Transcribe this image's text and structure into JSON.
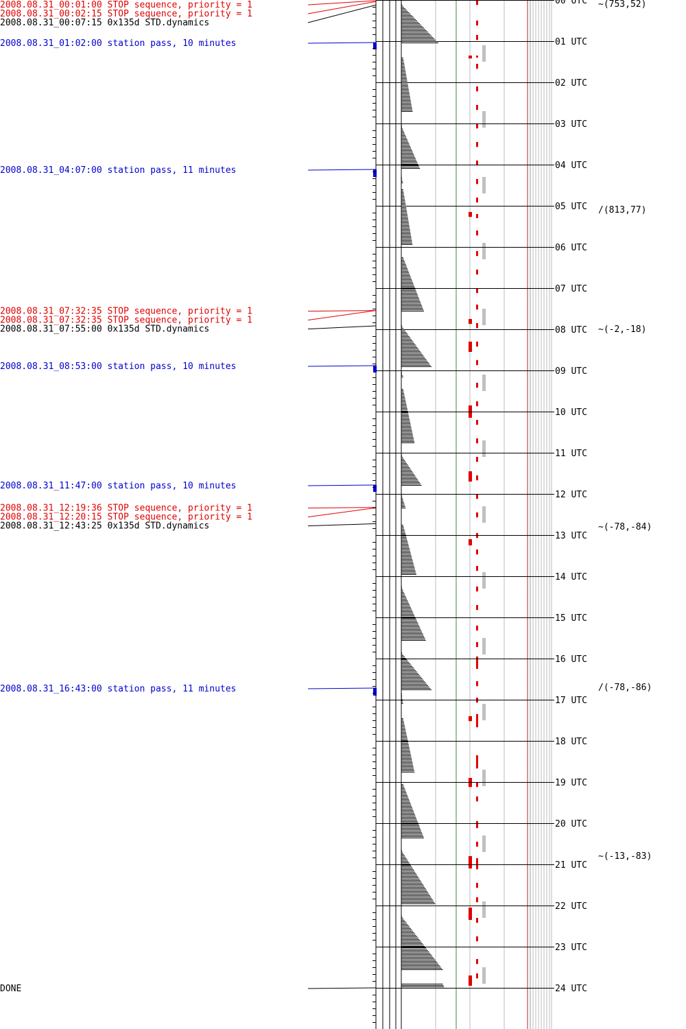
{
  "chart_data": {
    "type": "timeline",
    "title": "",
    "axis": {
      "unit_label": "UTC",
      "hours": [
        "00",
        "01",
        "02",
        "03",
        "04",
        "05",
        "06",
        "07",
        "08",
        "09",
        "10",
        "11",
        "12",
        "13",
        "14",
        "15",
        "16",
        "17",
        "18",
        "19",
        "20",
        "21",
        "22",
        "23",
        "24"
      ],
      "range_hours": [
        0,
        24
      ]
    },
    "events": [
      {
        "time_h": 0.0167,
        "label": "2008.08.31_00:01:00 STOP sequence, priority = 1",
        "kind": "stop"
      },
      {
        "time_h": 0.0375,
        "label": "2008.08.31_00:02:15 STOP sequence, priority = 1",
        "kind": "stop"
      },
      {
        "time_h": 0.1208,
        "label": "2008.08.31_00:07:15 0x135d STD.dynamics",
        "kind": "cmd"
      },
      {
        "time_h": 1.0333,
        "label": "2008.08.31_01:02:00 station pass, 10 minutes",
        "kind": "pass",
        "duration_min": 10
      },
      {
        "time_h": 4.1167,
        "label": "2008.08.31_04:07:00 station pass, 11 minutes",
        "kind": "pass",
        "duration_min": 11
      },
      {
        "time_h": 7.5431,
        "label": "2008.08.31_07:32:35 STOP sequence, priority = 1",
        "kind": "stop"
      },
      {
        "time_h": 7.5431,
        "label": "2008.08.31_07:32:35 STOP sequence, priority = 1",
        "kind": "stop"
      },
      {
        "time_h": 7.9167,
        "label": "2008.08.31_07:55:00 0x135d STD.dynamics",
        "kind": "cmd"
      },
      {
        "time_h": 8.8833,
        "label": "2008.08.31_08:53:00 station pass, 10 minutes",
        "kind": "pass",
        "duration_min": 10
      },
      {
        "time_h": 11.7833,
        "label": "2008.08.31_11:47:00 station pass, 10 minutes",
        "kind": "pass",
        "duration_min": 10
      },
      {
        "time_h": 12.3267,
        "label": "2008.08.31_12:19:36 STOP sequence, priority = 1",
        "kind": "stop"
      },
      {
        "time_h": 12.3375,
        "label": "2008.08.31_12:20:15 STOP sequence, priority = 1",
        "kind": "stop"
      },
      {
        "time_h": 12.7236,
        "label": "2008.08.31_12:43:25 0x135d STD.dynamics",
        "kind": "cmd"
      },
      {
        "time_h": 16.7167,
        "label": "2008.08.31_16:43:00 station pass, 11 minutes",
        "kind": "pass",
        "duration_min": 11
      },
      {
        "time_h": 24.0,
        "label": "DONE",
        "kind": "done"
      }
    ],
    "positions": [
      {
        "time_h": 0.0,
        "label": "(753,52)",
        "symbol": "~"
      },
      {
        "time_h": 5.0,
        "label": "(813,77)",
        "symbol": "/"
      },
      {
        "time_h": 7.9,
        "label": "(-2,-18)",
        "symbol": "~"
      },
      {
        "time_h": 12.7,
        "label": "(-78,-84)",
        "symbol": "~"
      },
      {
        "time_h": 16.6,
        "label": "(-78,-86)",
        "symbol": "/"
      },
      {
        "time_h": 20.7,
        "label": "(-13,-83)",
        "symbol": "~"
      }
    ],
    "ramps": [
      {
        "start_h": 0.1,
        "end_h": 1.05,
        "min": 0.0,
        "max": 1.0
      },
      {
        "start_h": 1.4,
        "end_h": 2.7,
        "min": 0.05,
        "max": 0.3
      },
      {
        "start_h": 3.05,
        "end_h": 4.1,
        "min": 0.0,
        "max": 0.5
      },
      {
        "start_h": 4.3,
        "end_h": 4.45,
        "min": 0.0,
        "max": 0.05
      },
      {
        "start_h": 4.6,
        "end_h": 5.95,
        "min": 0.05,
        "max": 0.3
      },
      {
        "start_h": 6.25,
        "end_h": 7.55,
        "min": 0.05,
        "max": 0.6
      },
      {
        "start_h": 7.9,
        "end_h": 8.9,
        "min": 0.0,
        "max": 0.8
      },
      {
        "start_h": 9.05,
        "end_h": 9.15,
        "min": 0.0,
        "max": 0.05
      },
      {
        "start_h": 9.45,
        "end_h": 10.75,
        "min": 0.05,
        "max": 0.35
      },
      {
        "start_h": 11.05,
        "end_h": 11.8,
        "min": 0.0,
        "max": 0.55
      },
      {
        "start_h": 12.0,
        "end_h": 12.35,
        "min": 0.0,
        "max": 0.12
      },
      {
        "start_h": 12.75,
        "end_h": 13.95,
        "min": 0.05,
        "max": 0.4
      },
      {
        "start_h": 14.25,
        "end_h": 15.55,
        "min": 0.0,
        "max": 0.65
      },
      {
        "start_h": 15.85,
        "end_h": 16.75,
        "min": 0.0,
        "max": 0.8
      },
      {
        "start_h": 16.85,
        "end_h": 17.1,
        "min": 0.0,
        "max": 0.05
      },
      {
        "start_h": 17.45,
        "end_h": 18.75,
        "min": 0.05,
        "max": 0.35
      },
      {
        "start_h": 19.05,
        "end_h": 20.35,
        "min": 0.05,
        "max": 0.6
      },
      {
        "start_h": 20.65,
        "end_h": 21.95,
        "min": 0.0,
        "max": 0.9
      },
      {
        "start_h": 22.25,
        "end_h": 23.55,
        "min": 0.0,
        "max": 1.1
      },
      {
        "start_h": 23.9,
        "end_h": 24.0,
        "min": 1.1,
        "max": 1.15
      }
    ],
    "red_marks": [
      [
        0.0,
        0.12
      ],
      [
        0.5,
        0.62
      ],
      [
        0.85,
        0.97
      ],
      [
        1.35,
        1.4
      ],
      [
        1.55,
        1.67
      ],
      [
        2.1,
        2.22
      ],
      [
        2.55,
        2.67
      ],
      [
        3.0,
        3.12
      ],
      [
        3.45,
        3.57
      ],
      [
        3.9,
        4.02
      ],
      [
        4.35,
        4.47
      ],
      [
        4.8,
        4.92
      ],
      [
        5.2,
        5.3
      ],
      [
        5.6,
        5.72
      ],
      [
        6.1,
        6.22
      ],
      [
        6.55,
        6.67
      ],
      [
        7.0,
        7.12
      ],
      [
        7.4,
        7.52
      ],
      [
        7.85,
        7.97
      ],
      [
        8.3,
        8.42
      ],
      [
        8.75,
        8.87
      ],
      [
        9.3,
        9.42
      ],
      [
        9.75,
        9.87
      ],
      [
        10.2,
        10.32
      ],
      [
        10.65,
        10.77
      ],
      [
        11.1,
        11.22
      ],
      [
        11.55,
        11.67
      ],
      [
        12.0,
        12.12
      ],
      [
        12.45,
        12.57
      ],
      [
        12.95,
        13.07
      ],
      [
        13.35,
        13.47
      ],
      [
        13.75,
        13.87
      ],
      [
        14.25,
        14.37
      ],
      [
        14.7,
        14.82
      ],
      [
        15.2,
        15.32
      ],
      [
        15.6,
        15.72
      ],
      [
        15.95,
        16.25
      ],
      [
        16.55,
        16.67
      ],
      [
        16.95,
        17.07
      ],
      [
        17.35,
        17.67
      ],
      [
        18.35,
        18.67
      ],
      [
        19.0,
        19.12
      ],
      [
        19.35,
        19.47
      ],
      [
        19.95,
        20.12
      ],
      [
        20.45,
        20.57
      ],
      [
        20.85,
        21.12
      ],
      [
        21.45,
        21.57
      ],
      [
        21.8,
        21.92
      ],
      [
        22.3,
        22.42
      ],
      [
        22.75,
        22.87
      ],
      [
        23.3,
        23.42
      ],
      [
        23.65,
        23.77
      ]
    ],
    "red_blocks": [
      [
        1.35,
        1.42
      ],
      [
        5.15,
        5.27
      ],
      [
        7.75,
        7.87
      ],
      [
        8.3,
        8.55
      ],
      [
        9.85,
        10.15
      ],
      [
        11.45,
        11.7
      ],
      [
        13.1,
        13.25
      ],
      [
        17.4,
        17.52
      ],
      [
        18.9,
        19.12
      ],
      [
        20.8,
        21.1
      ],
      [
        22.05,
        22.35
      ],
      [
        23.7,
        23.95
      ]
    ],
    "gray_blocks": [
      [
        1.1,
        1.5
      ],
      [
        2.7,
        3.1
      ],
      [
        4.3,
        4.7
      ],
      [
        5.9,
        6.3
      ],
      [
        7.5,
        7.9
      ],
      [
        9.1,
        9.5
      ],
      [
        10.7,
        11.1
      ],
      [
        12.3,
        12.7
      ],
      [
        13.9,
        14.3
      ],
      [
        15.5,
        15.9
      ],
      [
        17.1,
        17.5
      ],
      [
        18.7,
        19.1
      ],
      [
        20.3,
        20.7
      ],
      [
        21.9,
        22.3
      ],
      [
        23.5,
        23.9
      ]
    ]
  }
}
